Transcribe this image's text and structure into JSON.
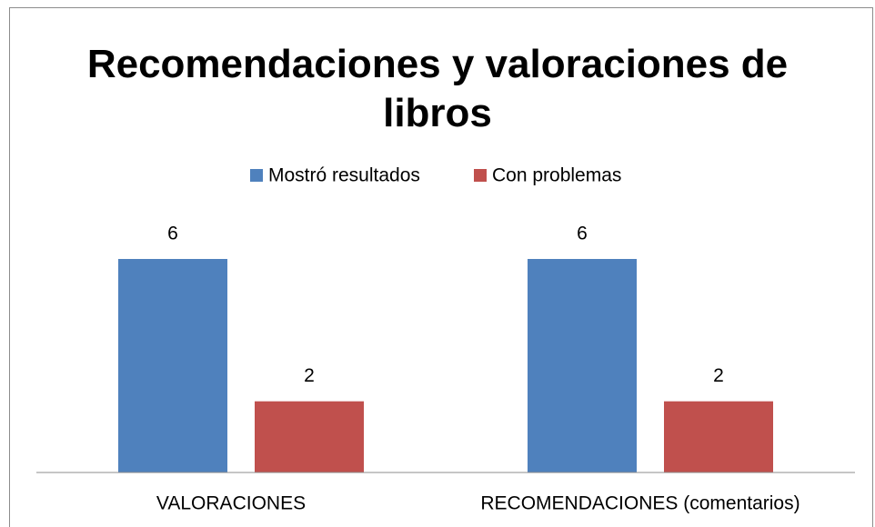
{
  "chart_data": {
    "type": "bar",
    "title": "Recomendaciones y valoraciones de libros",
    "categories": [
      "VALORACIONES",
      "RECOMENDACIONES (comentarios)"
    ],
    "series": [
      {
        "name": "Mostró resultados",
        "color": "#4f81bd",
        "values": [
          6,
          6
        ]
      },
      {
        "name": "Con problemas",
        "color": "#c0504d",
        "values": [
          2,
          2
        ]
      }
    ],
    "legend": "top"
  }
}
